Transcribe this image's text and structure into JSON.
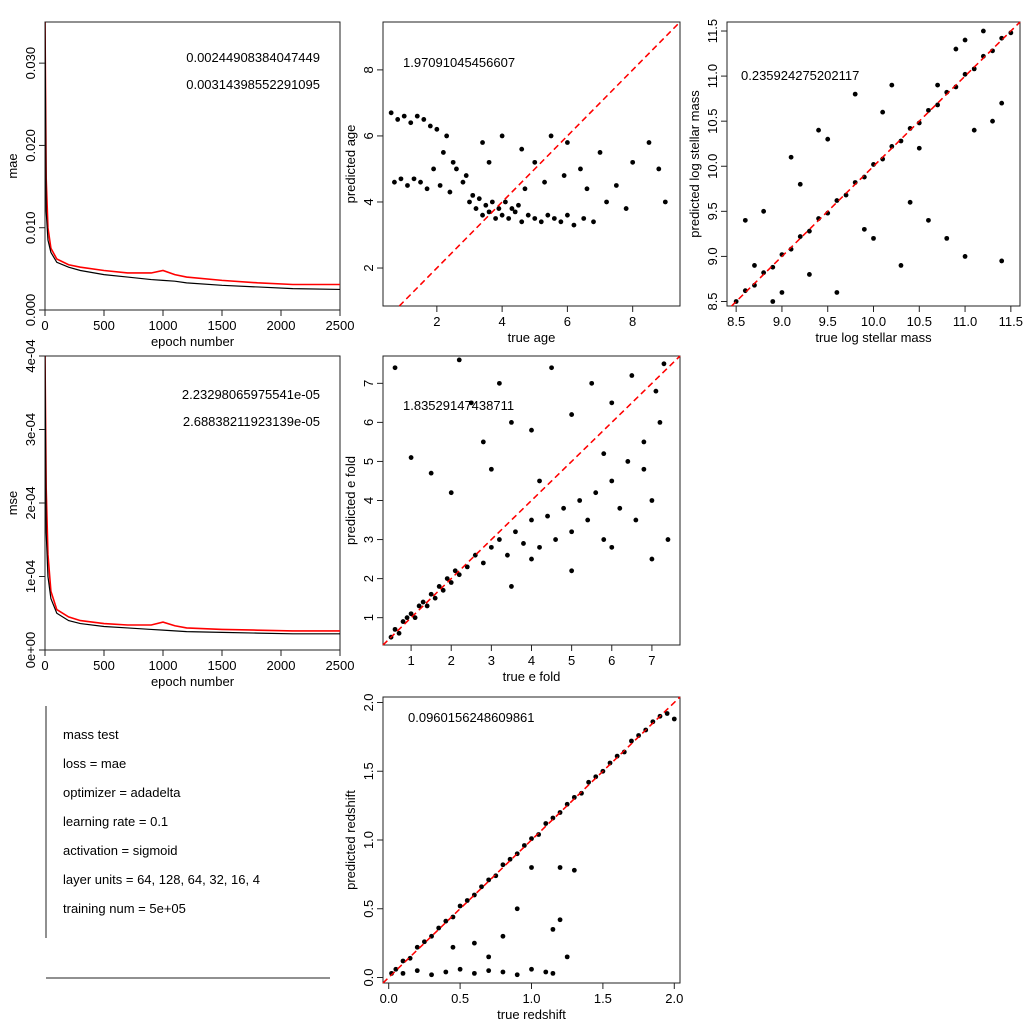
{
  "chart_data": [
    {
      "type": "line",
      "ylabel": "mae",
      "xlabel": "epoch number",
      "xlim": [
        0,
        2500
      ],
      "ylim": [
        0,
        0.035
      ],
      "x_ticks": [
        "0",
        "500",
        "1000",
        "1500",
        "2000",
        "2500"
      ],
      "y_ticks": [
        "0.000",
        "0.010",
        "0.020",
        "0.030"
      ],
      "annotations": [
        "0.00244908384047449",
        "0.00314398552291095"
      ],
      "series": [
        {
          "color": "#ff0000",
          "x": [
            0,
            10,
            25,
            50,
            100,
            200,
            300,
            500,
            700,
            900,
            1000,
            1100,
            1200,
            1500,
            1800,
            2100,
            2500
          ],
          "values": [
            0.035,
            0.016,
            0.01,
            0.0075,
            0.0062,
            0.0055,
            0.0052,
            0.0048,
            0.0045,
            0.0045,
            0.0048,
            0.0043,
            0.004,
            0.0036,
            0.0033,
            0.0031,
            0.0031
          ]
        },
        {
          "color": "#000000",
          "x": [
            0,
            10,
            25,
            50,
            100,
            200,
            300,
            500,
            700,
            900,
            1000,
            1100,
            1200,
            1500,
            1800,
            2100,
            2500
          ],
          "values": [
            0.035,
            0.012,
            0.0085,
            0.007,
            0.0058,
            0.0052,
            0.0048,
            0.0043,
            0.004,
            0.0037,
            0.0036,
            0.0035,
            0.0033,
            0.003,
            0.0028,
            0.0026,
            0.0025
          ]
        }
      ]
    },
    {
      "type": "scatter",
      "xlabel": "true age",
      "ylabel": "predicted age",
      "xlim": [
        0.35,
        9.45
      ],
      "ylim": [
        0.85,
        9.45
      ],
      "x_ticks": [
        2,
        4,
        6,
        8
      ],
      "y_ticks": [
        2,
        4,
        6,
        8
      ],
      "annotations": [
        "1.97091045456607"
      ],
      "points": [
        [
          0.6,
          6.7
        ],
        [
          0.8,
          6.5
        ],
        [
          1.0,
          6.6
        ],
        [
          1.2,
          6.4
        ],
        [
          1.4,
          6.6
        ],
        [
          1.6,
          6.5
        ],
        [
          1.8,
          6.3
        ],
        [
          0.7,
          4.6
        ],
        [
          0.9,
          4.7
        ],
        [
          1.1,
          4.5
        ],
        [
          1.3,
          4.7
        ],
        [
          1.5,
          4.6
        ],
        [
          1.7,
          4.4
        ],
        [
          2.0,
          6.2
        ],
        [
          2.3,
          6.0
        ],
        [
          2.5,
          5.2
        ],
        [
          2.8,
          4.6
        ],
        [
          3.0,
          4.0
        ],
        [
          3.2,
          3.8
        ],
        [
          3.4,
          3.6
        ],
        [
          3.6,
          3.7
        ],
        [
          3.8,
          3.5
        ],
        [
          4.0,
          3.6
        ],
        [
          4.2,
          3.5
        ],
        [
          4.4,
          3.7
        ],
        [
          4.6,
          3.4
        ],
        [
          4.8,
          3.6
        ],
        [
          5.0,
          3.5
        ],
        [
          5.2,
          3.4
        ],
        [
          5.4,
          3.6
        ],
        [
          5.6,
          3.5
        ],
        [
          5.8,
          3.4
        ],
        [
          6.0,
          3.6
        ],
        [
          6.2,
          3.3
        ],
        [
          6.5,
          3.5
        ],
        [
          6.8,
          3.4
        ],
        [
          3.1,
          4.2
        ],
        [
          3.3,
          4.1
        ],
        [
          3.5,
          3.9
        ],
        [
          3.7,
          4.0
        ],
        [
          3.9,
          3.8
        ],
        [
          4.1,
          4.0
        ],
        [
          4.3,
          3.8
        ],
        [
          4.5,
          3.9
        ],
        [
          2.2,
          5.5
        ],
        [
          2.6,
          5.0
        ],
        [
          2.9,
          4.8
        ],
        [
          3.4,
          5.8
        ],
        [
          4.0,
          6.0
        ],
        [
          4.6,
          5.6
        ],
        [
          5.0,
          5.2
        ],
        [
          5.5,
          6.0
        ],
        [
          6.0,
          5.8
        ],
        [
          6.4,
          5.0
        ],
        [
          7.0,
          5.5
        ],
        [
          7.5,
          4.5
        ],
        [
          8.0,
          5.2
        ],
        [
          8.5,
          5.8
        ],
        [
          9.0,
          4.0
        ],
        [
          8.8,
          5.0
        ],
        [
          7.2,
          4.0
        ],
        [
          6.6,
          4.4
        ],
        [
          5.9,
          4.8
        ],
        [
          5.3,
          4.6
        ],
        [
          4.7,
          4.4
        ],
        [
          2.1,
          4.5
        ],
        [
          2.4,
          4.3
        ],
        [
          1.9,
          5.0
        ],
        [
          3.6,
          5.2
        ],
        [
          7.8,
          3.8
        ]
      ]
    },
    {
      "type": "scatter",
      "xlabel": "true log stellar mass",
      "ylabel": "predicted log stellar mass",
      "xlim": [
        8.4,
        11.6
      ],
      "ylim": [
        8.45,
        11.6
      ],
      "x_ticks": [
        "8.5",
        "9.0",
        "9.5",
        "10.0",
        "10.5",
        "11.0",
        "11.5"
      ],
      "y_ticks": [
        "8.5",
        "9.0",
        "9.5",
        "10.0",
        "10.5",
        "11.0",
        "11.5"
      ],
      "annotations": [
        "0.235924275202117"
      ],
      "points": [
        [
          8.5,
          8.5
        ],
        [
          8.6,
          8.62
        ],
        [
          8.7,
          8.68
        ],
        [
          8.8,
          8.82
        ],
        [
          8.9,
          8.88
        ],
        [
          9.0,
          9.02
        ],
        [
          9.1,
          9.08
        ],
        [
          9.2,
          9.22
        ],
        [
          9.3,
          9.28
        ],
        [
          9.4,
          9.42
        ],
        [
          9.5,
          9.48
        ],
        [
          9.6,
          9.62
        ],
        [
          9.7,
          9.68
        ],
        [
          9.8,
          9.82
        ],
        [
          9.9,
          9.88
        ],
        [
          10.0,
          10.02
        ],
        [
          10.1,
          10.08
        ],
        [
          10.2,
          10.22
        ],
        [
          10.3,
          10.28
        ],
        [
          10.4,
          10.42
        ],
        [
          10.5,
          10.48
        ],
        [
          10.6,
          10.62
        ],
        [
          10.7,
          10.68
        ],
        [
          10.8,
          10.82
        ],
        [
          10.9,
          10.88
        ],
        [
          11.0,
          11.02
        ],
        [
          11.1,
          11.08
        ],
        [
          11.2,
          11.22
        ],
        [
          11.3,
          11.28
        ],
        [
          11.4,
          11.42
        ],
        [
          11.5,
          11.48
        ],
        [
          8.6,
          9.4
        ],
        [
          8.7,
          8.9
        ],
        [
          8.8,
          9.5
        ],
        [
          9.0,
          8.6
        ],
        [
          9.2,
          9.8
        ],
        [
          9.3,
          8.8
        ],
        [
          9.4,
          10.4
        ],
        [
          9.5,
          10.3
        ],
        [
          9.6,
          8.6
        ],
        [
          9.8,
          10.8
        ],
        [
          10.0,
          9.2
        ],
        [
          10.2,
          10.9
        ],
        [
          10.3,
          8.9
        ],
        [
          10.4,
          9.6
        ],
        [
          10.6,
          9.4
        ],
        [
          10.7,
          10.9
        ],
        [
          10.8,
          9.2
        ],
        [
          10.9,
          11.3
        ],
        [
          11.0,
          9.0
        ],
        [
          11.1,
          10.4
        ],
        [
          11.3,
          10.5
        ],
        [
          11.4,
          8.95
        ],
        [
          11.2,
          11.5
        ],
        [
          11.4,
          10.7
        ],
        [
          9.1,
          10.1
        ],
        [
          8.9,
          8.5
        ],
        [
          10.5,
          10.2
        ],
        [
          9.9,
          9.3
        ],
        [
          10.1,
          10.6
        ],
        [
          11.0,
          11.4
        ]
      ]
    },
    {
      "type": "line",
      "ylabel": "mse",
      "xlabel": "epoch number",
      "xlim": [
        0,
        2500
      ],
      "ylim": [
        0,
        0.0004
      ],
      "x_ticks": [
        "0",
        "500",
        "1000",
        "1500",
        "2000",
        "2500"
      ],
      "y_ticks": [
        "0e+00",
        "1e-04",
        "2e-04",
        "3e-04",
        "4e-04"
      ],
      "annotations": [
        "2.23298065975541e-05",
        "2.68838211923139e-05"
      ],
      "series": [
        {
          "color": "#ff0000",
          "x": [
            0,
            10,
            25,
            50,
            100,
            200,
            300,
            500,
            700,
            900,
            1000,
            1100,
            1200,
            1500,
            1800,
            2100,
            2500
          ],
          "values": [
            0.0004,
            0.00022,
            0.00013,
            8e-05,
            5.5e-05,
            4.5e-05,
            4e-05,
            3.6e-05,
            3.4e-05,
            3.4e-05,
            3.8e-05,
            3.3e-05,
            3e-05,
            2.8e-05,
            2.7e-05,
            2.6e-05,
            2.6e-05
          ]
        },
        {
          "color": "#000000",
          "x": [
            0,
            10,
            25,
            50,
            100,
            200,
            300,
            500,
            700,
            900,
            1000,
            1100,
            1200,
            1500,
            1800,
            2100,
            2500
          ],
          "values": [
            0.0004,
            0.00016,
            0.0001,
            7e-05,
            5e-05,
            4e-05,
            3.6e-05,
            3.2e-05,
            3e-05,
            2.8e-05,
            2.7e-05,
            2.6e-05,
            2.5e-05,
            2.4e-05,
            2.3e-05,
            2.2e-05,
            2.2e-05
          ]
        }
      ]
    },
    {
      "type": "scatter",
      "xlabel": "true e fold",
      "ylabel": "predicted e fold",
      "xlim": [
        0.3,
        7.7
      ],
      "ylim": [
        0.3,
        7.7
      ],
      "x_ticks": [
        1,
        2,
        3,
        4,
        5,
        6,
        7
      ],
      "y_ticks": [
        1,
        2,
        3,
        4,
        5,
        6,
        7
      ],
      "annotations": [
        "1.83529147438711"
      ],
      "points": [
        [
          0.5,
          0.5
        ],
        [
          0.6,
          0.7
        ],
        [
          0.7,
          0.6
        ],
        [
          0.8,
          0.9
        ],
        [
          0.9,
          1.0
        ],
        [
          1.0,
          1.1
        ],
        [
          1.1,
          1.0
        ],
        [
          1.2,
          1.3
        ],
        [
          1.3,
          1.4
        ],
        [
          1.4,
          1.3
        ],
        [
          1.5,
          1.6
        ],
        [
          1.6,
          1.5
        ],
        [
          1.7,
          1.8
        ],
        [
          1.8,
          1.7
        ],
        [
          1.9,
          2.0
        ],
        [
          2.0,
          1.9
        ],
        [
          2.1,
          2.2
        ],
        [
          2.2,
          2.1
        ],
        [
          2.4,
          2.3
        ],
        [
          2.6,
          2.6
        ],
        [
          2.8,
          2.4
        ],
        [
          3.0,
          2.8
        ],
        [
          3.2,
          3.0
        ],
        [
          3.4,
          2.6
        ],
        [
          3.6,
          3.2
        ],
        [
          3.8,
          2.9
        ],
        [
          4.0,
          3.5
        ],
        [
          4.2,
          2.8
        ],
        [
          4.4,
          3.6
        ],
        [
          4.6,
          3.0
        ],
        [
          4.8,
          3.8
        ],
        [
          5.0,
          3.2
        ],
        [
          5.2,
          4.0
        ],
        [
          5.4,
          3.5
        ],
        [
          5.6,
          4.2
        ],
        [
          5.8,
          3.0
        ],
        [
          6.0,
          4.5
        ],
        [
          6.2,
          3.8
        ],
        [
          6.4,
          5.0
        ],
        [
          6.6,
          3.5
        ],
        [
          6.8,
          5.5
        ],
        [
          7.0,
          4.0
        ],
        [
          7.2,
          6.0
        ],
        [
          7.4,
          3.0
        ],
        [
          7.3,
          7.5
        ],
        [
          7.1,
          6.8
        ],
        [
          6.5,
          7.2
        ],
        [
          6.0,
          6.5
        ],
        [
          5.5,
          7.0
        ],
        [
          5.0,
          6.2
        ],
        [
          4.5,
          7.4
        ],
        [
          4.0,
          5.8
        ],
        [
          3.5,
          6.0
        ],
        [
          3.2,
          7.0
        ],
        [
          2.8,
          5.5
        ],
        [
          2.5,
          6.5
        ],
        [
          2.2,
          7.6
        ],
        [
          1.0,
          5.1
        ],
        [
          0.6,
          7.4
        ],
        [
          1.5,
          4.7
        ],
        [
          2.0,
          4.2
        ],
        [
          3.0,
          4.8
        ],
        [
          4.0,
          2.5
        ],
        [
          5.0,
          2.2
        ],
        [
          6.0,
          2.8
        ],
        [
          7.0,
          2.5
        ],
        [
          3.5,
          1.8
        ],
        [
          4.2,
          4.5
        ],
        [
          5.8,
          5.2
        ],
        [
          6.8,
          4.8
        ]
      ]
    },
    {
      "type": "scatter",
      "xlabel": "true redshift",
      "ylabel": "predicted redshift",
      "xlim": [
        -0.04,
        2.04
      ],
      "ylim": [
        -0.04,
        2.04
      ],
      "x_ticks": [
        "0.0",
        "0.5",
        "1.0",
        "1.5",
        "2.0"
      ],
      "y_ticks": [
        "0.0",
        "0.5",
        "1.0",
        "1.5",
        "2.0"
      ],
      "annotations": [
        "0.0960156248609861"
      ],
      "points": [
        [
          0.02,
          0.03
        ],
        [
          0.05,
          0.06
        ],
        [
          0.1,
          0.12
        ],
        [
          0.15,
          0.14
        ],
        [
          0.2,
          0.22
        ],
        [
          0.25,
          0.26
        ],
        [
          0.3,
          0.3
        ],
        [
          0.35,
          0.36
        ],
        [
          0.4,
          0.41
        ],
        [
          0.45,
          0.44
        ],
        [
          0.5,
          0.52
        ],
        [
          0.55,
          0.56
        ],
        [
          0.6,
          0.6
        ],
        [
          0.65,
          0.66
        ],
        [
          0.7,
          0.71
        ],
        [
          0.75,
          0.74
        ],
        [
          0.8,
          0.82
        ],
        [
          0.85,
          0.86
        ],
        [
          0.9,
          0.9
        ],
        [
          0.95,
          0.96
        ],
        [
          1.0,
          1.01
        ],
        [
          1.05,
          1.04
        ],
        [
          1.1,
          1.12
        ],
        [
          1.15,
          1.16
        ],
        [
          1.2,
          1.2
        ],
        [
          1.25,
          1.26
        ],
        [
          1.3,
          1.31
        ],
        [
          1.35,
          1.34
        ],
        [
          1.4,
          1.42
        ],
        [
          1.45,
          1.46
        ],
        [
          1.5,
          1.5
        ],
        [
          1.55,
          1.56
        ],
        [
          1.6,
          1.61
        ],
        [
          1.65,
          1.64
        ],
        [
          1.7,
          1.72
        ],
        [
          1.75,
          1.76
        ],
        [
          1.8,
          1.8
        ],
        [
          1.85,
          1.86
        ],
        [
          1.9,
          1.9
        ],
        [
          1.95,
          1.92
        ],
        [
          2.0,
          1.88
        ],
        [
          0.1,
          0.03
        ],
        [
          0.2,
          0.05
        ],
        [
          0.3,
          0.02
        ],
        [
          0.4,
          0.04
        ],
        [
          0.5,
          0.06
        ],
        [
          0.6,
          0.03
        ],
        [
          0.7,
          0.05
        ],
        [
          0.8,
          0.04
        ],
        [
          0.9,
          0.02
        ],
        [
          1.0,
          0.06
        ],
        [
          1.1,
          0.04
        ],
        [
          1.15,
          0.03
        ],
        [
          0.6,
          0.25
        ],
        [
          0.8,
          0.3
        ],
        [
          1.0,
          0.8
        ],
        [
          1.2,
          0.8
        ],
        [
          1.3,
          0.78
        ],
        [
          1.25,
          0.15
        ],
        [
          0.9,
          0.5
        ],
        [
          0.7,
          0.15
        ],
        [
          0.45,
          0.22
        ],
        [
          1.2,
          0.42
        ],
        [
          1.15,
          0.35
        ]
      ]
    }
  ],
  "info_panel": {
    "lines": [
      "mass test",
      "loss = mae",
      "optimizer = adadelta",
      "learning rate = 0.1",
      "activation = sigmoid",
      "layer units = 64, 128, 64, 32, 16, 4",
      "training num = 5e+05"
    ]
  }
}
